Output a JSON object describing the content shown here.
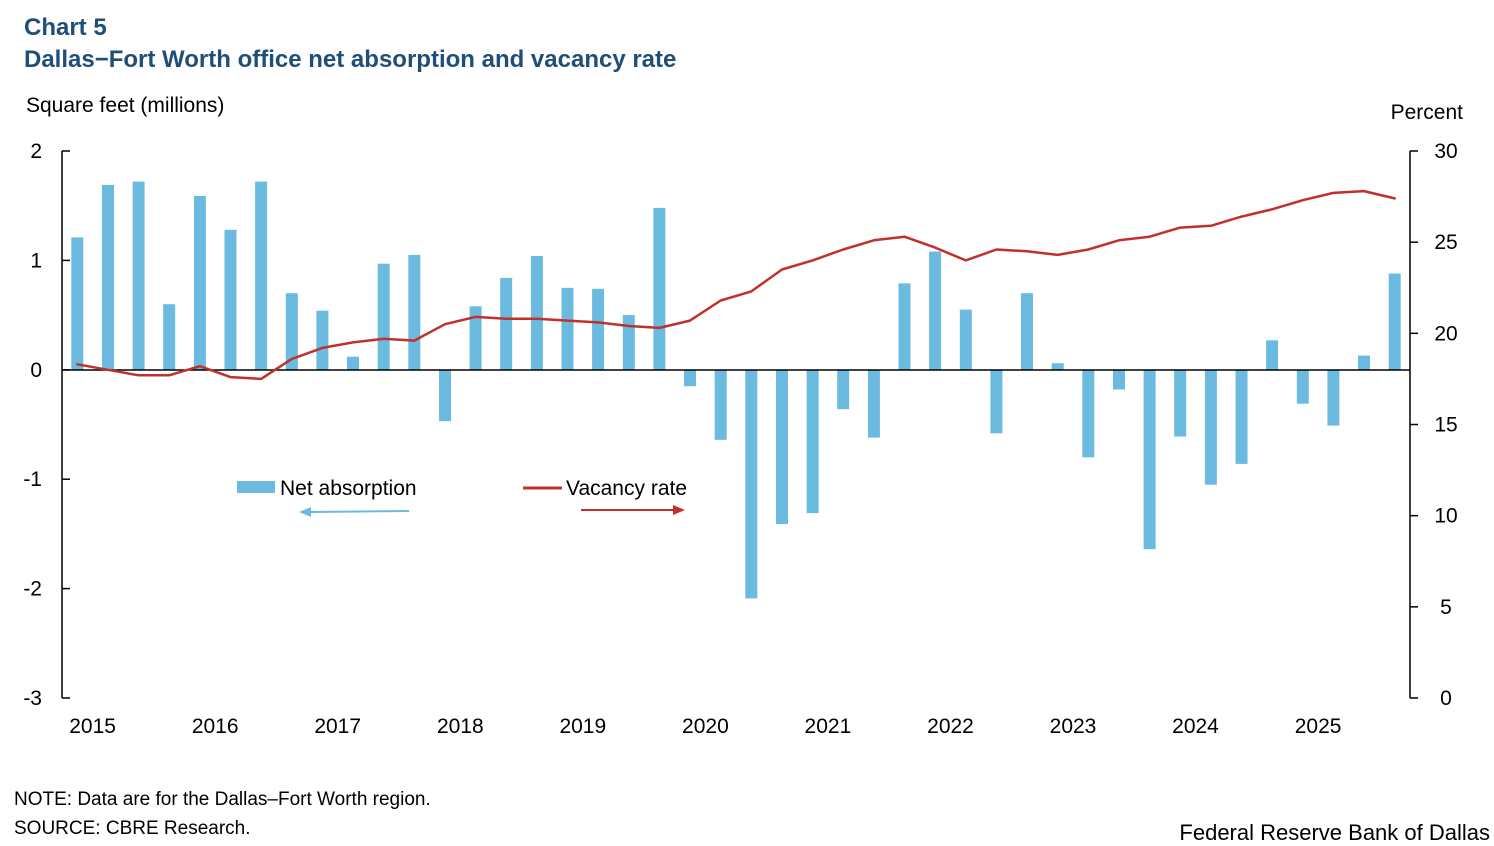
{
  "header": {
    "chart_number": "Chart 5",
    "title": "Dallas−Fort Worth office net absorption and vacancy rate"
  },
  "footer": {
    "note": "NOTE: Data are for the Dallas–Fort Worth region.",
    "source": "SOURCE: CBRE Research.",
    "credit": "Federal Reserve Bank of Dallas"
  },
  "colors": {
    "bar": "#6bbbe1",
    "line": "#c0312b",
    "axis": "#000000",
    "title": "#1f4e79"
  },
  "chart_data": {
    "type": "bar+line",
    "title": "Dallas−Fort Worth office net absorption and vacancy rate",
    "y_left_label": "Square feet (millions)",
    "y_right_label": "Percent",
    "y_left_range": [
      -3,
      2
    ],
    "y_left_ticks": [
      "-3",
      "-2",
      "-1",
      "0",
      "1",
      "2"
    ],
    "y_right_range": [
      0,
      30
    ],
    "y_right_ticks": [
      "0",
      "5",
      "10",
      "15",
      "20",
      "25",
      "30"
    ],
    "x_year_labels": [
      "2015",
      "2016",
      "2017",
      "2018",
      "2019",
      "2020",
      "2021",
      "2022",
      "2023",
      "2024",
      "2025"
    ],
    "x_year_label_quarter_index": [
      1,
      5,
      9,
      13,
      17,
      21,
      25,
      29,
      33,
      37,
      41
    ],
    "quarters": [
      "2015Q1",
      "2015Q2",
      "2015Q3",
      "2015Q4",
      "2016Q1",
      "2016Q2",
      "2016Q3",
      "2016Q4",
      "2017Q1",
      "2017Q2",
      "2017Q3",
      "2017Q4",
      "2018Q1",
      "2018Q2",
      "2018Q3",
      "2018Q4",
      "2019Q1",
      "2019Q2",
      "2019Q3",
      "2019Q4",
      "2020Q1",
      "2020Q2",
      "2020Q3",
      "2020Q4",
      "2021Q1",
      "2021Q2",
      "2021Q3",
      "2021Q4",
      "2022Q1",
      "2022Q2",
      "2022Q3",
      "2022Q4",
      "2023Q1",
      "2023Q2",
      "2023Q3",
      "2023Q4",
      "2024Q1",
      "2024Q2",
      "2024Q3",
      "2024Q4",
      "2025Q1",
      "2025Q2",
      "2025Q3",
      "2025Q4"
    ],
    "series": [
      {
        "name": "Net absorption",
        "axis": "left",
        "type": "bar",
        "values": [
          1.21,
          1.69,
          1.72,
          0.6,
          1.59,
          1.28,
          1.72,
          0.7,
          0.54,
          0.12,
          0.97,
          1.05,
          -0.47,
          0.58,
          0.84,
          1.04,
          0.75,
          0.74,
          0.5,
          1.48,
          -0.15,
          -0.64,
          -2.09,
          -1.41,
          -1.31,
          -0.36,
          -0.62,
          0.79,
          1.08,
          0.55,
          -0.58,
          0.7,
          0.06,
          -0.8,
          -0.18,
          -1.64,
          -0.61,
          -1.05,
          -0.86,
          0.27,
          -0.31,
          -0.51,
          0.13,
          0.88
        ]
      },
      {
        "name": "Vacancy rate",
        "axis": "right",
        "type": "line",
        "values": [
          18.3,
          18.0,
          17.7,
          17.7,
          18.2,
          17.6,
          17.5,
          18.6,
          19.2,
          19.5,
          19.7,
          19.6,
          20.5,
          20.9,
          20.8,
          20.8,
          20.7,
          20.6,
          20.4,
          20.3,
          20.7,
          21.8,
          22.3,
          23.5,
          24.0,
          24.6,
          25.1,
          25.3,
          24.7,
          24.0,
          24.6,
          24.5,
          24.3,
          24.6,
          25.1,
          25.3,
          25.8,
          25.9,
          26.4,
          26.8,
          27.3,
          27.7,
          27.8,
          27.4
        ]
      }
    ],
    "legend": [
      {
        "label": "Net absorption",
        "axis_hint": "left"
      },
      {
        "label": "Vacancy rate",
        "axis_hint": "right"
      }
    ]
  }
}
